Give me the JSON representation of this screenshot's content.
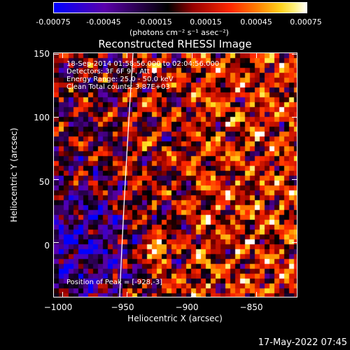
{
  "colorbar": {
    "tick_labels": [
      "-0.00075",
      "-0.00045",
      "-0.00015",
      "0.00015",
      "0.00045",
      "0.00075"
    ],
    "range": [
      -0.00075,
      0.00075
    ],
    "units": "(photons cm⁻² s⁻¹ asec⁻²)"
  },
  "chart_data": {
    "type": "heatmap",
    "title": "Reconstructed RHESSI Image",
    "xlabel": "Heliocentric X (arcsec)",
    "ylabel": "Heliocentric Y (arcsec)",
    "xlim": [
      -1007,
      -818
    ],
    "ylim": [
      -44,
      151
    ],
    "x_ticks": [
      -1000,
      -950,
      -900,
      -850
    ],
    "x_tick_labels": [
      "−1000",
      "−950",
      "−900",
      "−850"
    ],
    "y_ticks": [
      0,
      50,
      100,
      150
    ],
    "y_tick_labels": [
      "0",
      "50",
      "100",
      "150"
    ],
    "peak": [
      -928,
      -3
    ],
    "colormap": "red-temperature",
    "colors": {
      "low": "#0000ff",
      "mid": "#000000",
      "high": "#ffffff",
      "limb": "#ffffff"
    }
  },
  "info": {
    "line1": "18-Sep-2014 01:58:56.000 to 02:04:56.000",
    "line2": "Detectors: 3F 6F 9F, Att 0",
    "line3": "Energy Range: 25.0 - 50.0 keV",
    "line4": "Clean    Total counts: 3.87E+03"
  },
  "peak_label": "Position of Peak = [-928,-3]",
  "timestamp": "17-May-2022 07:45"
}
